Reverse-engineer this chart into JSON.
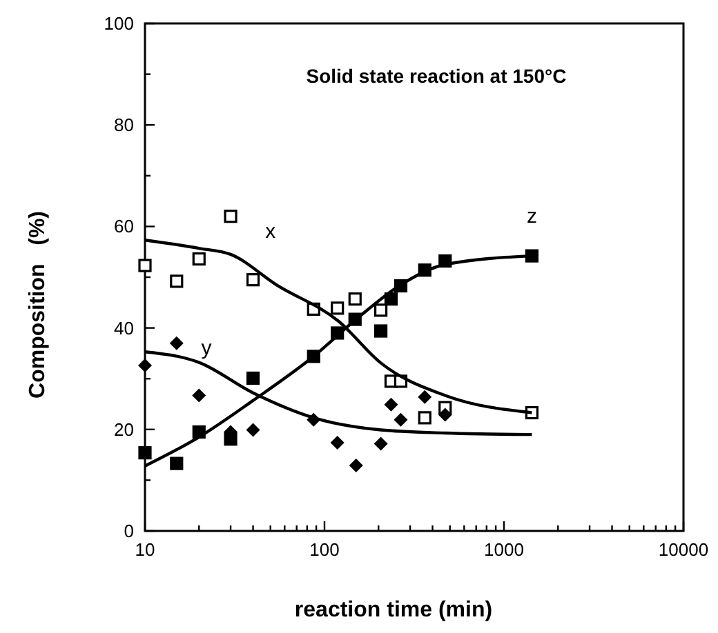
{
  "chart_data": {
    "type": "scatter",
    "title": "Solid state reaction at 150°C",
    "xlabel": "reaction time (min)",
    "ylabel": "Composition   (%)",
    "log": "x",
    "xlim": [
      10,
      10000
    ],
    "ylim": [
      0,
      100
    ],
    "xticks": [
      10,
      {
        "value": 20,
        "label": null
      },
      {
        "value": 30,
        "label": null
      },
      {
        "value": 40,
        "label": null
      },
      {
        "value": 50,
        "label": null
      },
      {
        "value": 60,
        "label": null
      },
      {
        "value": 70,
        "label": null
      },
      {
        "value": 80,
        "label": null
      },
      {
        "value": 90,
        "label": null
      },
      100,
      {
        "value": 200,
        "label": null
      },
      {
        "value": 300,
        "label": null
      },
      {
        "value": 400,
        "label": null
      },
      {
        "value": 500,
        "label": null
      },
      {
        "value": 600,
        "label": null
      },
      {
        "value": 700,
        "label": null
      },
      {
        "value": 800,
        "label": null
      },
      {
        "value": 900,
        "label": null
      },
      1000,
      {
        "value": 2000,
        "label": null
      },
      {
        "value": 3000,
        "label": null
      },
      {
        "value": 4000,
        "label": null
      },
      {
        "value": 5000,
        "label": null
      },
      {
        "value": 6000,
        "label": null
      },
      {
        "value": 7000,
        "label": null
      },
      {
        "value": 8000,
        "label": null
      },
      {
        "value": 9000,
        "label": null
      },
      10000
    ],
    "yticks": [
      0,
      {
        "value": 10,
        "label": null
      },
      20,
      {
        "value": 30,
        "label": null
      },
      40,
      {
        "value": 50,
        "label": null
      },
      60,
      {
        "value": 70,
        "label": null
      },
      80,
      {
        "value": 90,
        "label": null
      },
      100
    ],
    "grid": false,
    "series": [
      {
        "marker": "square",
        "color": "#000000",
        "x": [
          10,
          15,
          20,
          30,
          40,
          87,
          118,
          148,
          206,
          235,
          266,
          362,
          470,
          1430
        ],
        "values": [
          52.3,
          49.2,
          53.6,
          62,
          49.5,
          43.7,
          43.9,
          45.7,
          43.5,
          29.5,
          29.5,
          22.3,
          24.3,
          23.3
        ]
      },
      {
        "marker": "diamond",
        "color": "#000000",
        "x": [
          10,
          15,
          20,
          30,
          40,
          87,
          118,
          150,
          206,
          235,
          266,
          362,
          470
        ],
        "values": [
          32.6,
          37,
          26.7,
          19.5,
          19.9,
          21.9,
          17.4,
          12.9,
          17.2,
          24.9,
          21.9,
          26.4,
          22.9
        ]
      },
      {
        "marker": "square",
        "color": "#000000",
        "x": [
          10,
          15,
          20,
          30,
          40,
          87,
          118,
          148,
          206,
          235,
          266,
          362,
          470,
          1430
        ],
        "values": [
          15.4,
          13.3,
          19.5,
          18.1,
          30.1,
          34.4,
          39,
          41.7,
          39.4,
          45.7,
          48.3,
          51.4,
          53.2,
          54.2
        ]
      },
      {
        "type": "line",
        "name": "x",
        "marker": "none",
        "line_style": "solid",
        "color": "#000000",
        "x": [
          10,
          20,
          30,
          54,
          120,
          206,
          470,
          1430
        ],
        "values": [
          57.3,
          55.7,
          54.5,
          48.5,
          41.3,
          33.1,
          26.7,
          23.3
        ]
      },
      {
        "type": "line",
        "name": "y",
        "marker": "none",
        "line_style": "solid",
        "color": "#000000",
        "x": [
          10,
          20,
          40,
          87,
          206,
          470,
          1430
        ],
        "values": [
          35.3,
          33.2,
          27.2,
          22.3,
          19.9,
          19.3,
          19
        ]
      },
      {
        "type": "line",
        "name": "z",
        "marker": "none",
        "line_style": "solid",
        "color": "#000000",
        "x": [
          10,
          20,
          40,
          87,
          150,
          266,
          470,
          1430
        ],
        "values": [
          12.8,
          18.5,
          25.7,
          34.4,
          41.7,
          48.5,
          52.5,
          54.2
        ]
      }
    ]
  }
}
